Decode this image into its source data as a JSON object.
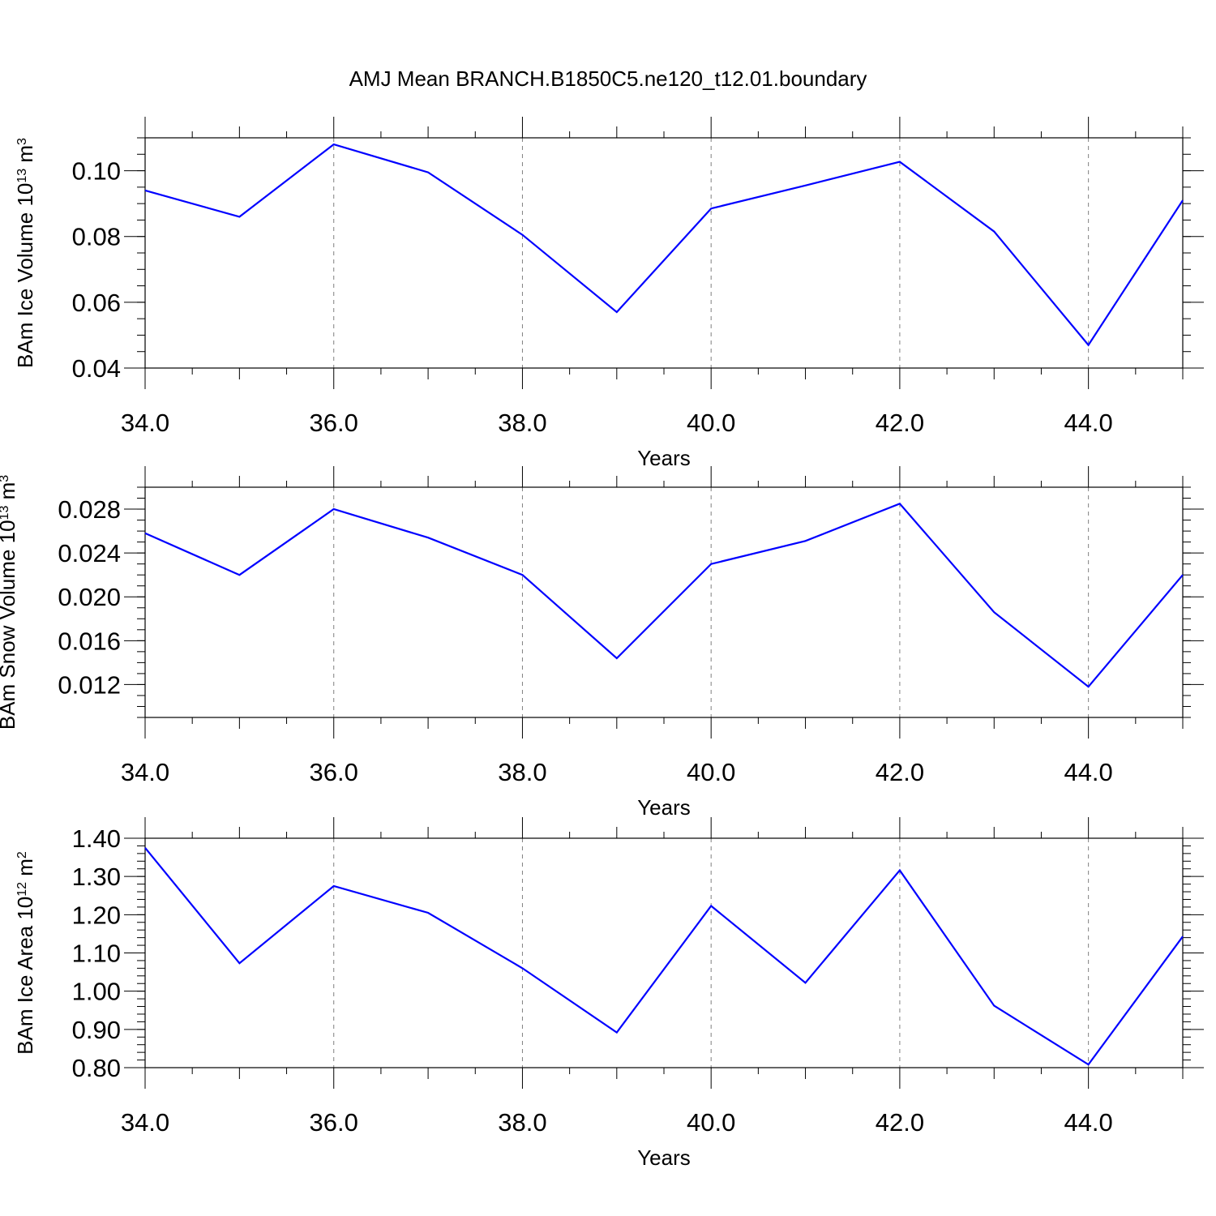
{
  "title": "AMJ Mean BRANCH.B1850C5.ne120_t12.01.boundary",
  "colors": {
    "line": "#0000ff",
    "axis": "#000000",
    "grid": "#808080"
  },
  "chart_data": [
    {
      "type": "line",
      "ylabel": "BAm Ice Volume 10",
      "ylabel_exp": "13",
      "ylabel_unit": "m",
      "ylabel_unit_exp": "3",
      "xlabel": "Years",
      "xlim": [
        34,
        45
      ],
      "ylim": [
        0.04,
        0.11
      ],
      "x_ticks": [
        "34.0",
        "36.0",
        "38.0",
        "40.0",
        "42.0",
        "44.0"
      ],
      "y_ticks": [
        "0.04",
        "0.06",
        "0.08",
        "0.10"
      ],
      "vertical_grid": "dashed at major x ticks",
      "x": [
        34,
        35,
        36,
        37,
        38,
        39,
        40,
        41,
        42,
        43,
        44,
        45
      ],
      "values": [
        0.094,
        0.086,
        0.108,
        0.0995,
        0.0805,
        0.057,
        0.0885,
        0.0955,
        0.1027,
        0.0815,
        0.047,
        0.091
      ]
    },
    {
      "type": "line",
      "ylabel": "BAm Snow Volume 10",
      "ylabel_exp": "13",
      "ylabel_unit": "m",
      "ylabel_unit_exp": "3",
      "xlabel": "Years",
      "xlim": [
        34,
        45
      ],
      "ylim": [
        0.009,
        0.03
      ],
      "x_ticks": [
        "34.0",
        "36.0",
        "38.0",
        "40.0",
        "42.0",
        "44.0"
      ],
      "y_ticks": [
        "0.012",
        "0.016",
        "0.020",
        "0.024",
        "0.028"
      ],
      "vertical_grid": "dashed at major x ticks",
      "x": [
        34,
        35,
        36,
        37,
        38,
        39,
        40,
        41,
        42,
        43,
        44,
        45
      ],
      "values": [
        0.0258,
        0.022,
        0.028,
        0.0254,
        0.022,
        0.0144,
        0.023,
        0.0251,
        0.0285,
        0.0186,
        0.0118,
        0.022
      ]
    },
    {
      "type": "line",
      "ylabel": "BAm Ice Area 10",
      "ylabel_exp": "12",
      "ylabel_unit": "m",
      "ylabel_unit_exp": "2",
      "xlabel": "Years",
      "xlim": [
        34,
        45
      ],
      "ylim": [
        0.8,
        1.4
      ],
      "x_ticks": [
        "34.0",
        "36.0",
        "38.0",
        "40.0",
        "42.0",
        "44.0"
      ],
      "y_ticks": [
        "0.80",
        "0.90",
        "1.00",
        "1.10",
        "1.20",
        "1.30",
        "1.40"
      ],
      "vertical_grid": "dashed at major x ticks",
      "x": [
        34,
        35,
        36,
        37,
        38,
        39,
        40,
        41,
        42,
        43,
        44,
        45
      ],
      "values": [
        1.375,
        1.073,
        1.275,
        1.205,
        1.06,
        0.892,
        1.223,
        1.022,
        1.316,
        0.962,
        0.808,
        1.143
      ]
    }
  ]
}
